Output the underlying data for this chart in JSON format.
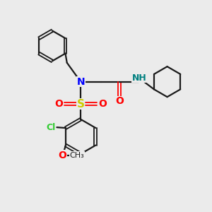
{
  "background_color": "#ebebeb",
  "bond_color": "#1a1a1a",
  "N_color": "#0000ff",
  "O_color": "#ff0000",
  "S_color": "#cccc00",
  "Cl_color": "#33cc33",
  "H_color": "#008080",
  "figsize": [
    3.0,
    3.0
  ],
  "dpi": 100,
  "xlim": [
    0,
    10
  ],
  "ylim": [
    0,
    10
  ]
}
